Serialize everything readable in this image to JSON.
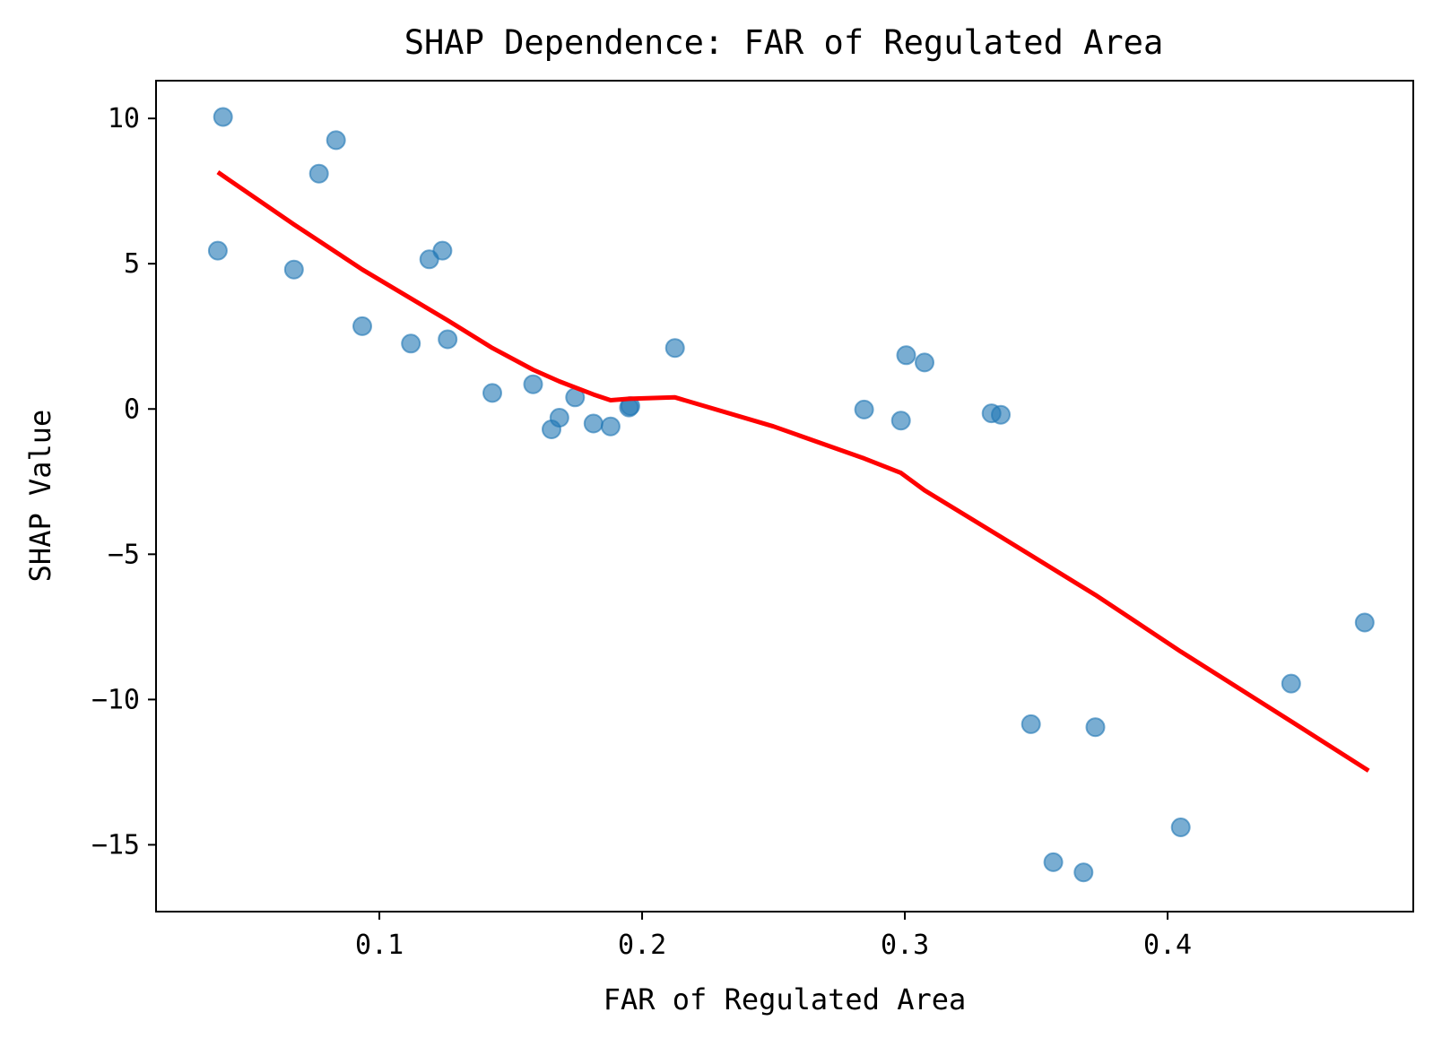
{
  "chart_data": {
    "type": "scatter",
    "title": "SHAP Dependence: FAR of Regulated Area",
    "xlabel": "FAR of Regulated Area",
    "ylabel": "SHAP Value",
    "xlim": [
      0.015,
      0.4935
    ],
    "ylim": [
      -17.3,
      11.3
    ],
    "xticks": [
      0.1,
      0.2,
      0.3,
      0.4
    ],
    "xtick_labels": [
      "0.1",
      "0.2",
      "0.3",
      "0.4"
    ],
    "yticks": [
      10,
      5,
      0,
      -5,
      -10,
      -15
    ],
    "ytick_labels": [
      "10",
      "5",
      "0",
      "−5",
      "−10",
      "−15"
    ],
    "grid": false,
    "legend": "none",
    "colors": {
      "points": "#1f77b4",
      "trend": "#ff0000"
    },
    "series": [
      {
        "kind": "scatter",
        "points": [
          [
            0.0405,
            10.05
          ],
          [
            0.0385,
            5.45
          ],
          [
            0.0675,
            4.8
          ],
          [
            0.077,
            8.1
          ],
          [
            0.0835,
            9.25
          ],
          [
            0.0935,
            2.85
          ],
          [
            0.112,
            2.25
          ],
          [
            0.119,
            5.15
          ],
          [
            0.124,
            5.45
          ],
          [
            0.126,
            2.4
          ],
          [
            0.143,
            0.55
          ],
          [
            0.1585,
            0.85
          ],
          [
            0.1655,
            -0.7
          ],
          [
            0.1685,
            -0.3
          ],
          [
            0.1745,
            0.4
          ],
          [
            0.1815,
            -0.5
          ],
          [
            0.188,
            -0.6
          ],
          [
            0.195,
            0.05
          ],
          [
            0.1955,
            0.1
          ],
          [
            0.2125,
            2.1
          ],
          [
            0.2845,
            -0.02
          ],
          [
            0.2985,
            -0.4
          ],
          [
            0.3005,
            1.85
          ],
          [
            0.3075,
            1.6
          ],
          [
            0.333,
            -0.15
          ],
          [
            0.3365,
            -0.2
          ],
          [
            0.348,
            -10.85
          ],
          [
            0.3565,
            -15.6
          ],
          [
            0.368,
            -15.95
          ],
          [
            0.3725,
            -10.95
          ],
          [
            0.405,
            -14.4
          ],
          [
            0.447,
            -9.45
          ],
          [
            0.475,
            -7.35
          ]
        ]
      },
      {
        "kind": "line",
        "points": [
          [
            0.0385,
            8.15
          ],
          [
            0.0675,
            6.35
          ],
          [
            0.0935,
            4.8
          ],
          [
            0.126,
            3.05
          ],
          [
            0.143,
            2.1
          ],
          [
            0.1585,
            1.35
          ],
          [
            0.1685,
            0.95
          ],
          [
            0.1815,
            0.5
          ],
          [
            0.188,
            0.3
          ],
          [
            0.195,
            0.35
          ],
          [
            0.2125,
            0.4
          ],
          [
            0.25,
            -0.6
          ],
          [
            0.2845,
            -1.7
          ],
          [
            0.2985,
            -2.2
          ],
          [
            0.3075,
            -2.8
          ],
          [
            0.3365,
            -4.4
          ],
          [
            0.3725,
            -6.4
          ],
          [
            0.405,
            -8.35
          ],
          [
            0.447,
            -10.75
          ],
          [
            0.4765,
            -12.45
          ]
        ]
      }
    ]
  }
}
